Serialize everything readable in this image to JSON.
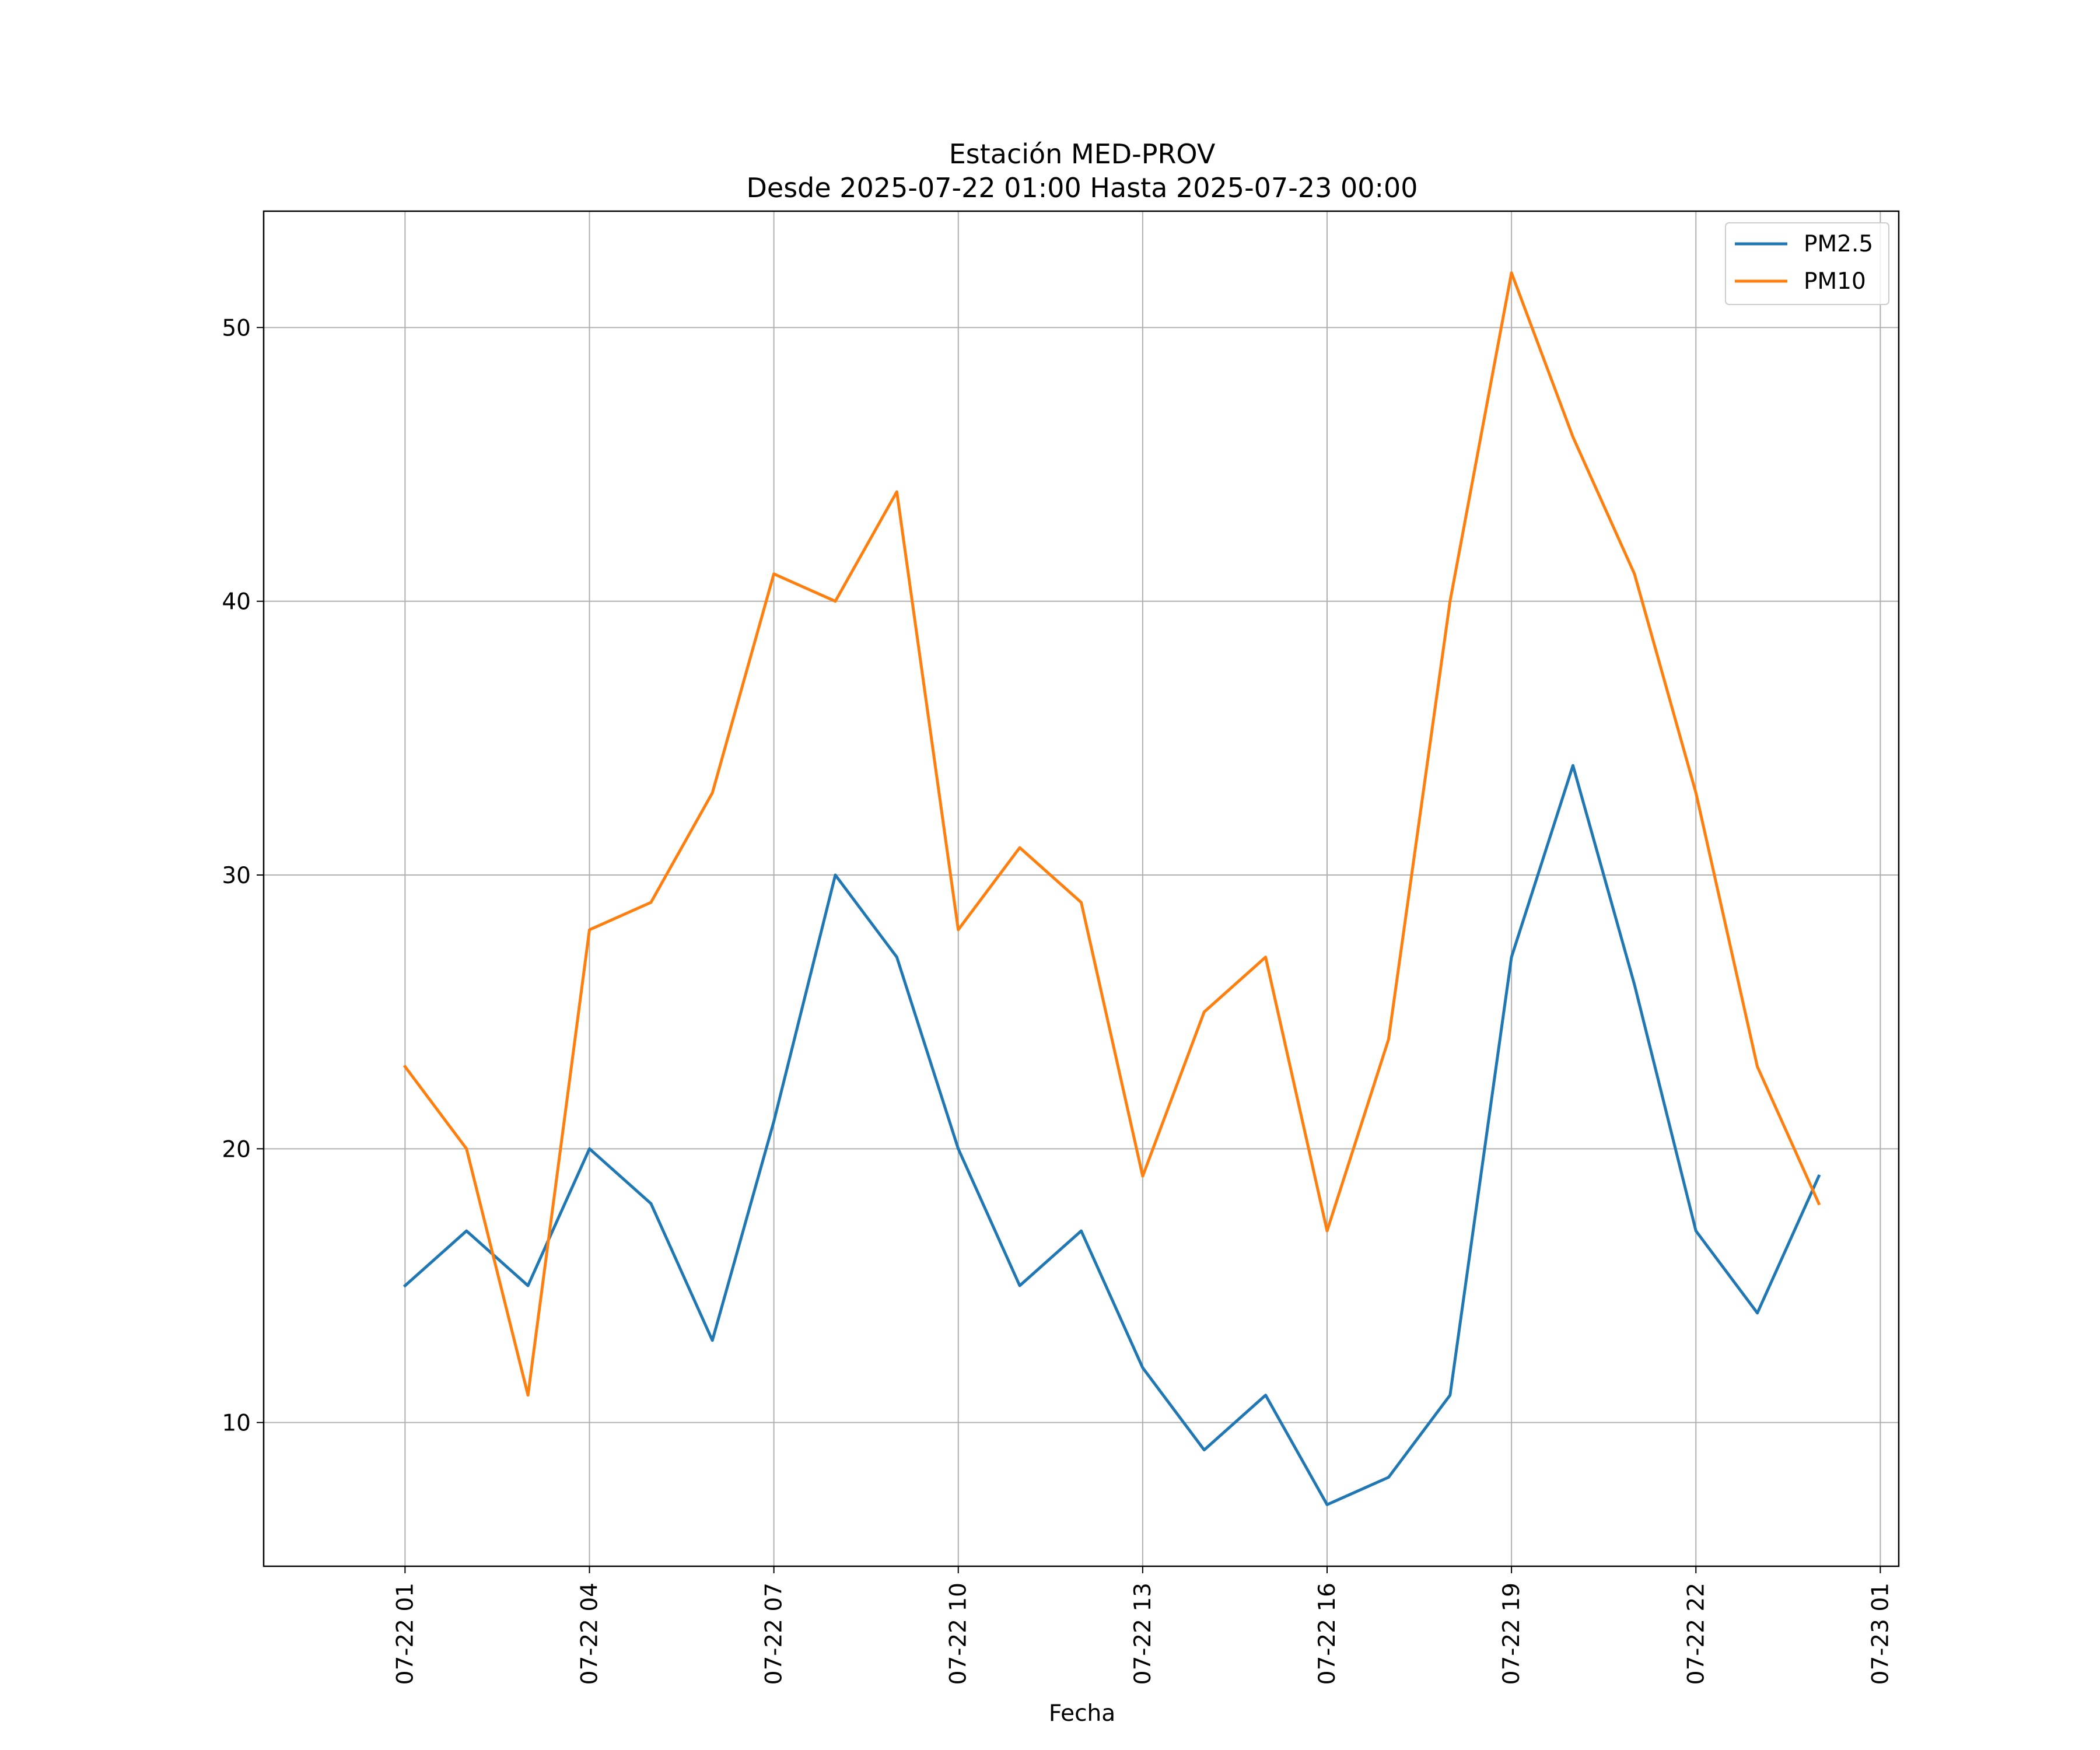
{
  "chart_data": {
    "type": "line",
    "title_line1": "Estación MED-PROV",
    "title_line2": "Desde 2025-07-22 01:00 Hasta 2025-07-23 00:00",
    "xlabel": "Fecha",
    "ylabel": "",
    "x": [
      "2025-07-22 01:00",
      "2025-07-22 02:00",
      "2025-07-22 03:00",
      "2025-07-22 04:00",
      "2025-07-22 05:00",
      "2025-07-22 06:00",
      "2025-07-22 07:00",
      "2025-07-22 08:00",
      "2025-07-22 09:00",
      "2025-07-22 10:00",
      "2025-07-22 11:00",
      "2025-07-22 12:00",
      "2025-07-22 13:00",
      "2025-07-22 14:00",
      "2025-07-22 15:00",
      "2025-07-22 16:00",
      "2025-07-22 17:00",
      "2025-07-22 18:00",
      "2025-07-22 19:00",
      "2025-07-22 20:00",
      "2025-07-22 21:00",
      "2025-07-22 22:00",
      "2025-07-22 23:00",
      "2025-07-23 00:00"
    ],
    "xlim": [
      "2025-07-21 22:42",
      "2025-07-23 01:18"
    ],
    "ylim": [
      4.75,
      54.25
    ],
    "x_ticks": [
      {
        "value": "2025-07-22 01:00",
        "label": "07-22 01"
      },
      {
        "value": "2025-07-22 04:00",
        "label": "07-22 04"
      },
      {
        "value": "2025-07-22 07:00",
        "label": "07-22 07"
      },
      {
        "value": "2025-07-22 10:00",
        "label": "07-22 10"
      },
      {
        "value": "2025-07-22 13:00",
        "label": "07-22 13"
      },
      {
        "value": "2025-07-22 16:00",
        "label": "07-22 16"
      },
      {
        "value": "2025-07-22 19:00",
        "label": "07-22 19"
      },
      {
        "value": "2025-07-22 22:00",
        "label": "07-22 22"
      },
      {
        "value": "2025-07-23 01:00",
        "label": "07-23 01"
      }
    ],
    "y_ticks": [
      {
        "value": 10,
        "label": "10"
      },
      {
        "value": 20,
        "label": "20"
      },
      {
        "value": 30,
        "label": "30"
      },
      {
        "value": 40,
        "label": "40"
      },
      {
        "value": 50,
        "label": "50"
      }
    ],
    "grid": true,
    "legend_position": "top-right",
    "series": [
      {
        "name": "PM2.5",
        "color": "#1f77b4",
        "values": [
          15,
          17,
          15,
          20,
          18,
          13,
          21,
          30,
          27,
          20,
          15,
          17,
          12,
          9,
          11,
          7,
          8,
          11,
          27,
          34,
          26,
          17,
          14,
          19
        ]
      },
      {
        "name": "PM10",
        "color": "#ff7f0e",
        "values": [
          23,
          20,
          11,
          28,
          29,
          33,
          41,
          40,
          44,
          28,
          31,
          29,
          19,
          25,
          27,
          17,
          24,
          40,
          52,
          46,
          41,
          33,
          23,
          18
        ]
      }
    ]
  }
}
